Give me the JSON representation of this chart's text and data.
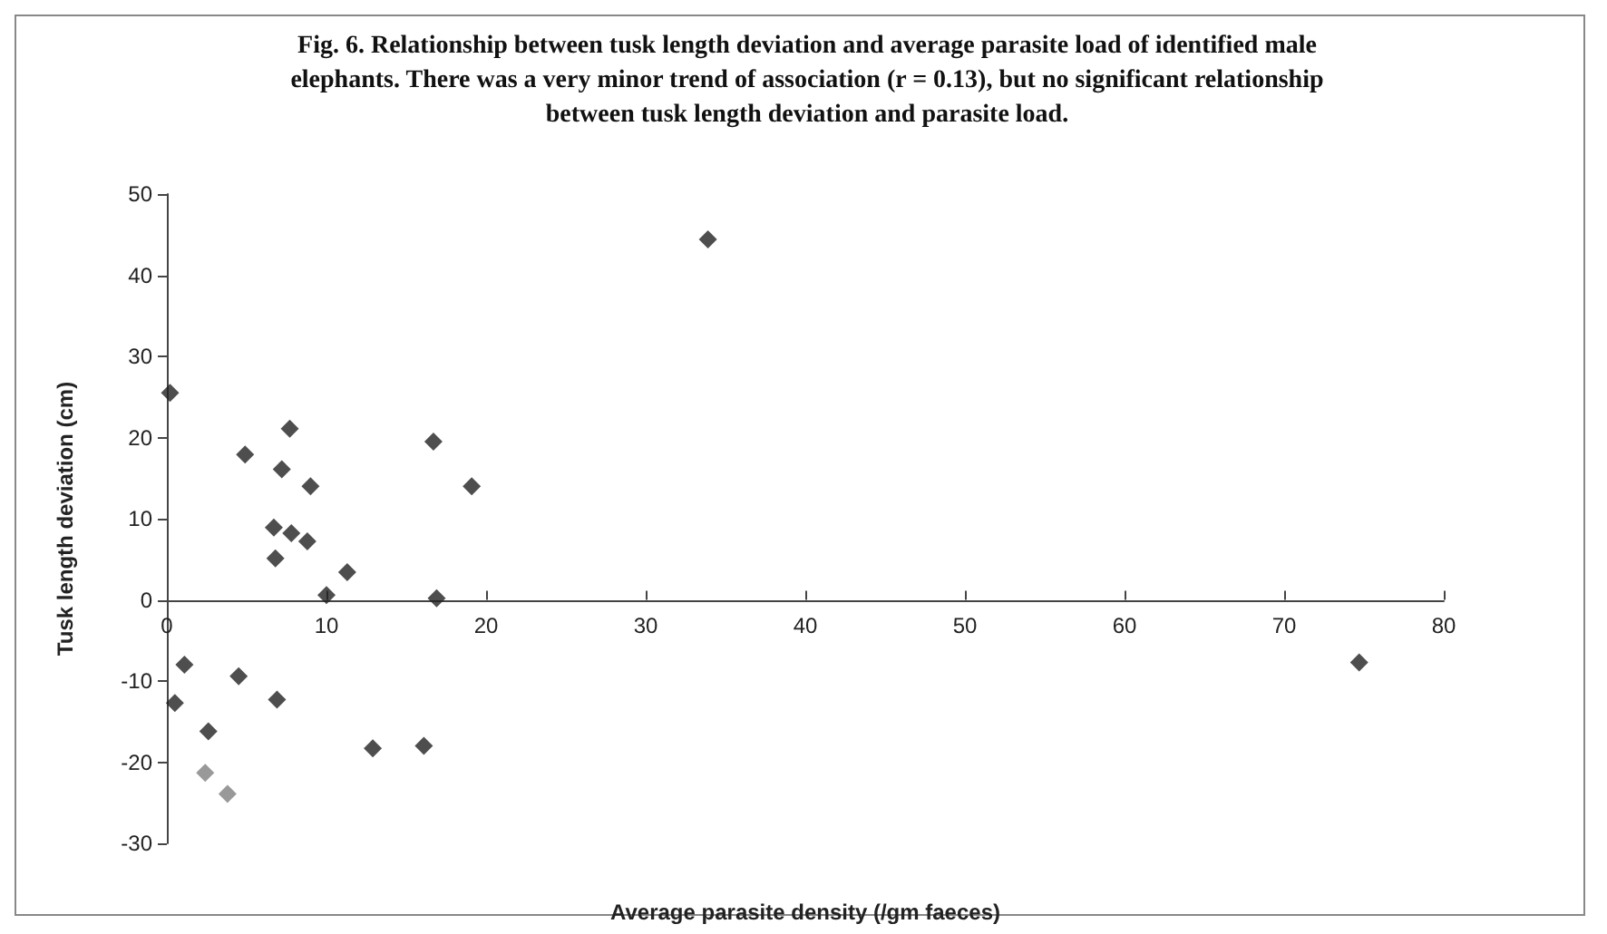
{
  "chart_data": {
    "type": "scatter",
    "title": "Fig. 6.  Relationship between tusk length deviation and average parasite load of identified male elephants.  There was a very minor trend of association (r = 0.13), but no significant relationship between tusk length deviation and parasite load.",
    "xlabel": "Average parasite density (/gm faeces)",
    "ylabel": "Tusk length deviation (cm)",
    "x": [
      0.2,
      4.9,
      7.7,
      7.2,
      9.0,
      6.7,
      7.8,
      8.8,
      6.8,
      11.3,
      10.0,
      16.7,
      19.1,
      16.9,
      1.1,
      0.5,
      4.5,
      6.9,
      2.6,
      2.4,
      3.8,
      12.9,
      16.1,
      33.9,
      74.7
    ],
    "values": [
      25.5,
      17.9,
      21.1,
      16.1,
      14.0,
      8.9,
      8.2,
      7.2,
      5.1,
      3.4,
      0.6,
      19.5,
      14.0,
      0.2,
      -8.0,
      -12.7,
      -9.4,
      -12.3,
      -16.2,
      -21.3,
      -23.9,
      -18.3,
      -18.0,
      44.4,
      -7.7
    ],
    "colors": [
      "#222222",
      "#222222",
      "#222222",
      "#222222",
      "#222222",
      "#222222",
      "#222222",
      "#222222",
      "#222222",
      "#222222",
      "#222222",
      "#222222",
      "#222222",
      "#222222",
      "#222222",
      "#222222",
      "#222222",
      "#222222",
      "#222222",
      "#808080",
      "#808080",
      "#222222",
      "#222222",
      "#222222",
      "#222222"
    ],
    "xlim": [
      0,
      80
    ],
    "xticks": [
      0,
      10,
      20,
      30,
      40,
      50,
      60,
      70,
      80
    ],
    "ylim": [
      -30,
      50
    ],
    "yticks": [
      -30,
      -20,
      -10,
      0,
      10,
      20,
      30,
      40,
      50
    ],
    "marker": "diamond",
    "grid": false
  }
}
